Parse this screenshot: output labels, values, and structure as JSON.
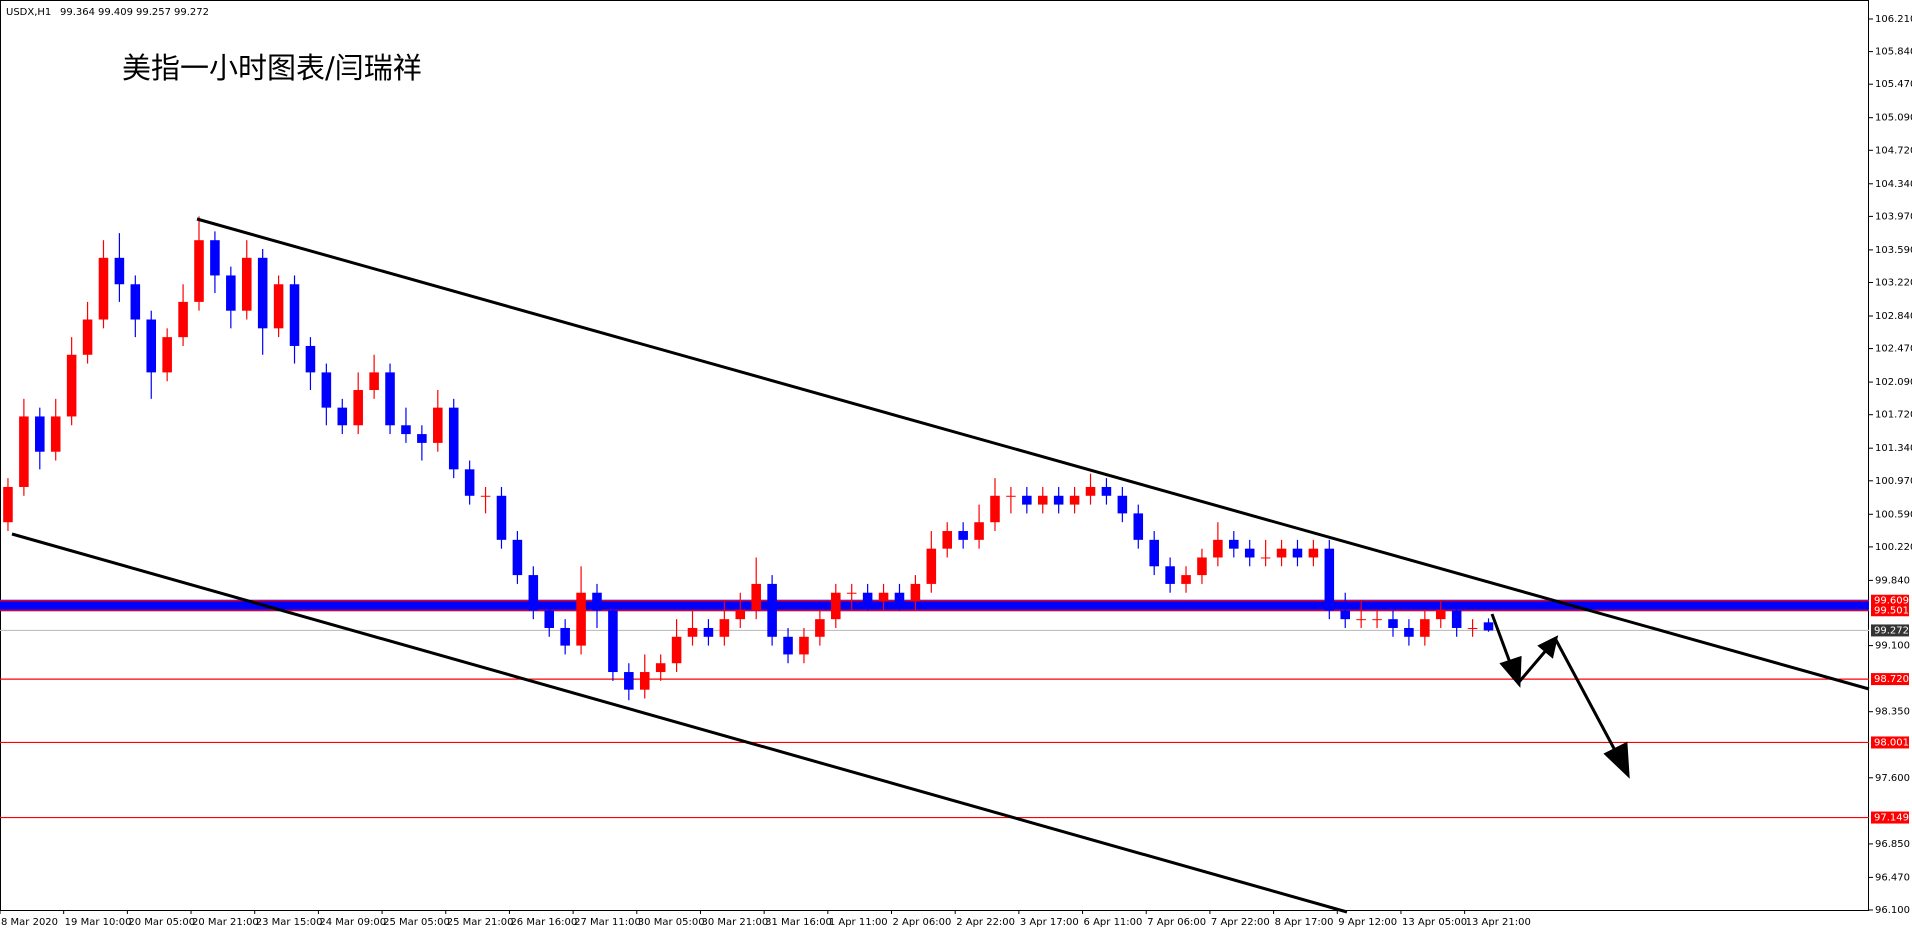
{
  "chart_data": {
    "type": "candlestick",
    "title": "美指一小时图表/闫瑞祥",
    "symbol": "USDX,H1",
    "up_color": "#ff0000",
    "down_color": "#0000ff",
    "open": [
      100.5,
      100.9,
      101.7,
      101.3,
      101.7,
      102.4,
      102.8,
      103.5,
      103.2,
      102.8,
      102.2,
      102.6,
      103.0,
      103.7,
      103.3,
      102.9,
      103.5,
      102.7,
      103.2,
      102.5,
      102.2,
      101.8,
      101.6,
      102.0,
      102.2,
      101.6,
      101.5,
      101.4,
      101.8,
      101.1,
      100.8,
      100.8,
      100.3,
      99.9,
      99.5,
      99.3,
      99.1,
      99.7,
      99.5,
      98.8,
      98.6,
      98.8,
      98.9,
      99.2,
      99.3,
      99.2,
      99.4,
      99.5,
      99.8,
      99.2,
      99.0,
      99.2,
      99.4,
      99.7,
      99.7,
      99.6,
      99.7,
      99.6,
      99.8,
      100.2,
      100.4,
      100.3,
      100.5,
      100.8,
      100.8,
      100.7,
      100.8,
      100.7,
      100.8,
      100.9,
      100.8,
      100.6,
      100.3,
      100.0,
      99.8,
      99.9,
      100.1,
      100.3,
      100.2,
      100.1,
      100.1,
      100.2,
      100.1,
      100.2,
      99.5,
      99.4,
      99.4,
      99.4,
      99.3,
      99.2,
      99.4,
      99.5,
      99.3,
      99.364
    ],
    "high": [
      101.0,
      101.9,
      101.8,
      101.9,
      102.6,
      103.0,
      103.7,
      103.78,
      103.3,
      102.9,
      102.7,
      103.2,
      103.97,
      103.8,
      103.4,
      103.7,
      103.6,
      103.3,
      103.3,
      102.6,
      102.3,
      101.9,
      102.2,
      102.4,
      102.3,
      101.8,
      101.6,
      102.0,
      101.9,
      101.2,
      100.9,
      100.9,
      100.4,
      100.0,
      99.6,
      99.4,
      100.0,
      99.8,
      99.6,
      98.9,
      99.0,
      99.0,
      99.4,
      99.5,
      99.4,
      99.6,
      99.7,
      100.1,
      99.9,
      99.3,
      99.3,
      99.5,
      99.8,
      99.8,
      99.8,
      99.8,
      99.8,
      99.9,
      100.4,
      100.5,
      100.5,
      100.7,
      101.0,
      100.9,
      100.9,
      100.9,
      100.9,
      100.9,
      101.05,
      101.0,
      100.9,
      100.7,
      100.4,
      100.1,
      100.0,
      100.2,
      100.5,
      100.4,
      100.3,
      100.3,
      100.3,
      100.3,
      100.3,
      100.3,
      99.7,
      99.6,
      99.5,
      99.5,
      99.4,
      99.5,
      99.6,
      99.6,
      99.4,
      99.409
    ],
    "low": [
      100.4,
      100.8,
      101.1,
      101.2,
      101.6,
      102.3,
      102.7,
      103.0,
      102.6,
      101.9,
      102.1,
      102.5,
      102.9,
      103.1,
      102.7,
      102.8,
      102.4,
      102.6,
      102.3,
      102.0,
      101.6,
      101.5,
      101.5,
      101.9,
      101.5,
      101.4,
      101.2,
      101.3,
      101.0,
      100.7,
      100.6,
      100.2,
      99.8,
      99.4,
      99.2,
      99.0,
      99.0,
      99.3,
      98.7,
      98.48,
      98.5,
      98.7,
      98.8,
      99.1,
      99.1,
      99.1,
      99.3,
      99.4,
      99.1,
      98.9,
      98.9,
      99.1,
      99.3,
      99.5,
      99.5,
      99.5,
      99.5,
      99.5,
      99.7,
      100.1,
      100.2,
      100.2,
      100.4,
      100.6,
      100.6,
      100.6,
      100.6,
      100.6,
      100.7,
      100.7,
      100.5,
      100.2,
      99.9,
      99.7,
      99.7,
      99.8,
      100.0,
      100.1,
      100.0,
      100.0,
      100.0,
      100.0,
      100.0,
      99.4,
      99.3,
      99.3,
      99.3,
      99.2,
      99.1,
      99.1,
      99.3,
      99.2,
      99.2,
      99.257
    ],
    "close": [
      100.9,
      101.7,
      101.3,
      101.7,
      102.4,
      102.8,
      103.5,
      103.2,
      102.8,
      102.2,
      102.6,
      103.0,
      103.7,
      103.3,
      102.9,
      103.5,
      102.7,
      103.2,
      102.5,
      102.2,
      101.8,
      101.6,
      102.0,
      102.2,
      101.6,
      101.5,
      101.4,
      101.8,
      101.1,
      100.8,
      100.8,
      100.3,
      99.9,
      99.5,
      99.3,
      99.1,
      99.7,
      99.5,
      98.8,
      98.6,
      98.8,
      98.9,
      99.2,
      99.3,
      99.2,
      99.4,
      99.5,
      99.8,
      99.2,
      99.0,
      99.2,
      99.4,
      99.7,
      99.7,
      99.6,
      99.7,
      99.6,
      99.8,
      100.2,
      100.4,
      100.3,
      100.5,
      100.8,
      100.8,
      100.7,
      100.8,
      100.7,
      100.8,
      100.9,
      100.8,
      100.6,
      100.3,
      100.0,
      99.8,
      99.9,
      100.1,
      100.3,
      100.2,
      100.1,
      100.1,
      100.2,
      100.1,
      100.2,
      99.5,
      99.4,
      99.4,
      99.4,
      99.3,
      99.2,
      99.4,
      99.5,
      99.3,
      99.3,
      99.272
    ],
    "xlim": [
      0,
      117.4
    ],
    "xticks": [
      {
        "value": 0,
        "label": "8 Mar 2020"
      },
      {
        "value": 4,
        "label": "19 Mar 10:00"
      },
      {
        "value": 8,
        "label": "20 Mar 05:00"
      },
      {
        "value": 12,
        "label": "20 Mar 21:00"
      },
      {
        "value": 16,
        "label": "23 Mar 15:00"
      },
      {
        "value": 20,
        "label": "24 Mar 09:00"
      },
      {
        "value": 24,
        "label": "25 Mar 05:00"
      },
      {
        "value": 28,
        "label": "25 Mar 21:00"
      },
      {
        "value": 32,
        "label": "26 Mar 16:00"
      },
      {
        "value": 36,
        "label": "27 Mar 11:00"
      },
      {
        "value": 40,
        "label": "30 Mar 05:00"
      },
      {
        "value": 44,
        "label": "30 Mar 21:00"
      },
      {
        "value": 48,
        "label": "31 Mar 16:00"
      },
      {
        "value": 52,
        "label": "1 Apr 11:00"
      },
      {
        "value": 56,
        "label": "2 Apr 06:00"
      },
      {
        "value": 60,
        "label": "2 Apr 22:00"
      },
      {
        "value": 64,
        "label": "3 Apr 17:00"
      },
      {
        "value": 68,
        "label": "6 Apr 11:00"
      },
      {
        "value": 72,
        "label": "7 Apr 06:00"
      },
      {
        "value": 76,
        "label": "7 Apr 22:00"
      },
      {
        "value": 80,
        "label": "8 Apr 17:00"
      },
      {
        "value": 84,
        "label": "9 Apr 12:00"
      },
      {
        "value": 88,
        "label": "13 Apr 05:00"
      },
      {
        "value": 92,
        "label": "13 Apr 21:00"
      }
    ],
    "ylim": [
      96.1,
      106.38
    ],
    "yticks": [
      {
        "value": 106.21,
        "label": "106.210"
      },
      {
        "value": 105.84,
        "label": "105.840"
      },
      {
        "value": 105.47,
        "label": "105.470"
      },
      {
        "value": 105.09,
        "label": "105.090"
      },
      {
        "value": 104.72,
        "label": "104.720"
      },
      {
        "value": 104.34,
        "label": "104.340"
      },
      {
        "value": 103.97,
        "label": "103.970"
      },
      {
        "value": 103.59,
        "label": "103.590"
      },
      {
        "value": 103.22,
        "label": "103.220"
      },
      {
        "value": 102.84,
        "label": "102.840"
      },
      {
        "value": 102.47,
        "label": "102.470"
      },
      {
        "value": 102.09,
        "label": "102.090"
      },
      {
        "value": 101.72,
        "label": "101.720"
      },
      {
        "value": 101.34,
        "label": "101.340"
      },
      {
        "value": 100.97,
        "label": "100.970"
      },
      {
        "value": 100.59,
        "label": "100.590"
      },
      {
        "value": 100.22,
        "label": "100.220"
      },
      {
        "value": 99.84,
        "label": "99.840"
      },
      {
        "value": 99.1,
        "label": "99.100"
      },
      {
        "value": 98.35,
        "label": "98.350"
      },
      {
        "value": 97.6,
        "label": "97.600"
      },
      {
        "value": 96.85,
        "label": "96.850"
      },
      {
        "value": 96.47,
        "label": "96.470"
      },
      {
        "value": 96.1,
        "label": "96.100"
      }
    ],
    "zone_color": "#0000ff",
    "levels": [
      {
        "value": 99.609,
        "label": "99.609",
        "color": "#ff0000"
      },
      {
        "value": 99.501,
        "label": "99.501",
        "color": "#ff0000"
      },
      {
        "value": 99.272,
        "label": "99.272",
        "color": "#c0c0c0"
      },
      {
        "value": 98.72,
        "label": "98.720",
        "color": "#ff0000"
      },
      {
        "value": 98.001,
        "label": "98.001",
        "color": "#ff0000"
      },
      {
        "value": 97.149,
        "label": "97.149",
        "color": "#ff0000"
      }
    ]
  }
}
